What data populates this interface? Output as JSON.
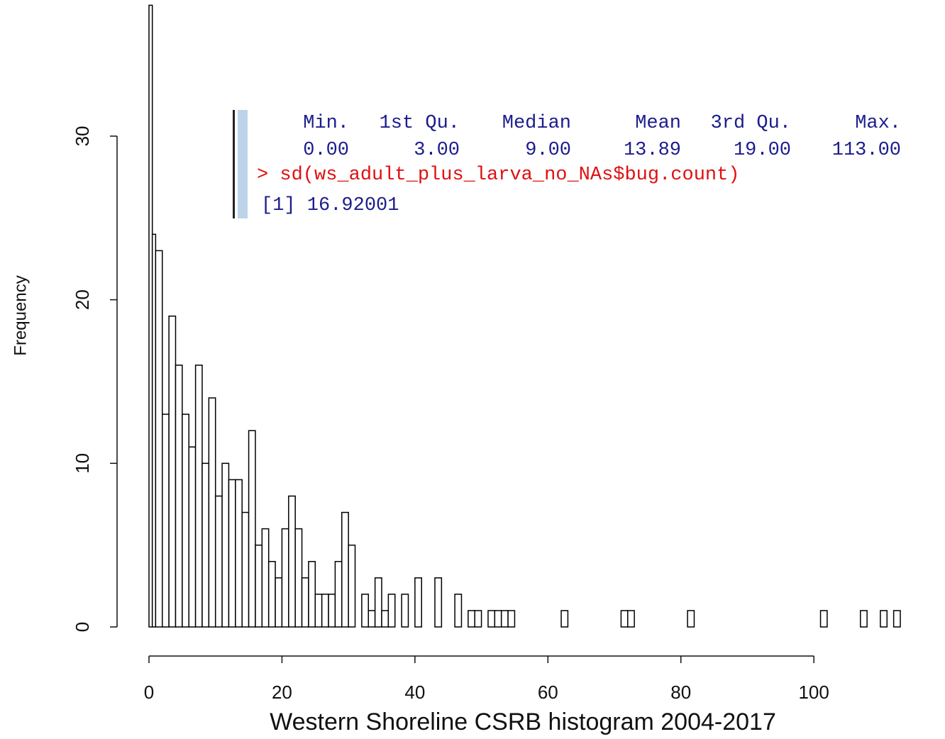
{
  "chart_data": {
    "type": "histogram",
    "xlabel": "Western Shoreline CSRB histogram 2004-2017",
    "ylabel": "Frequency",
    "bins": [
      0,
      0.5,
      1,
      2,
      3,
      4,
      5,
      6,
      7,
      8,
      9,
      10,
      11,
      12,
      13,
      14,
      15,
      16,
      17,
      18,
      19,
      20,
      21,
      22,
      23,
      24,
      25,
      26,
      27,
      28,
      29,
      30,
      31,
      32,
      33,
      34,
      35,
      36,
      37,
      38,
      39,
      40,
      41,
      42,
      43,
      44,
      45,
      46,
      47,
      48,
      49,
      50,
      51,
      52,
      53,
      54,
      55,
      56,
      57,
      58,
      59,
      60,
      61,
      62,
      63,
      64,
      65,
      66,
      67,
      68,
      69,
      70,
      71,
      72,
      73,
      74,
      75,
      76,
      77,
      78,
      79,
      80,
      81,
      82,
      83,
      84,
      85,
      86,
      87,
      88,
      89,
      90,
      91,
      92,
      93,
      94,
      95,
      96,
      97,
      98,
      99,
      100,
      101,
      102,
      103,
      104,
      105,
      106,
      107,
      108,
      109,
      110,
      111,
      112,
      113
    ],
    "values": [
      38,
      24,
      23,
      13,
      19,
      16,
      13,
      11,
      16,
      10,
      14,
      8,
      10,
      9,
      9,
      7,
      12,
      5,
      6,
      4,
      3,
      6,
      8,
      6,
      3,
      4,
      2,
      2,
      2,
      4,
      7,
      5,
      0,
      2,
      1,
      3,
      1,
      2,
      0,
      2,
      0,
      3,
      0,
      0,
      3,
      0,
      0,
      2,
      0,
      1,
      1,
      0,
      1,
      1,
      1,
      1,
      0,
      0,
      0,
      0,
      0,
      0,
      0,
      1,
      0,
      0,
      0,
      0,
      0,
      0,
      0,
      0,
      1,
      1,
      0,
      0,
      0,
      0,
      0,
      0,
      0,
      0,
      1,
      0,
      0,
      0,
      0,
      0,
      0,
      0,
      0,
      0,
      0,
      0,
      0,
      0,
      0,
      0,
      0,
      0,
      0,
      0,
      1,
      0,
      0,
      0,
      0,
      0,
      1,
      0,
      0,
      1,
      0,
      1
    ],
    "color": "#ffffff",
    "edgecolor": "#000000",
    "xlim": [
      0,
      113
    ],
    "xticks": [
      0,
      20,
      40,
      60,
      80,
      100
    ],
    "ylim": [
      0,
      38
    ],
    "yticks": [
      0,
      10,
      20,
      30
    ]
  },
  "console": {
    "summary_header": [
      "Min.",
      "1st Qu.",
      "Median",
      "Mean",
      "3rd Qu.",
      "Max."
    ],
    "summary_values": [
      "0.00",
      "3.00",
      "9.00",
      "13.89",
      "19.00",
      "113.00"
    ],
    "command": "> sd(ws_adult_plus_larva_no_NAs$bug.count)",
    "output": "[1] 16.92001"
  }
}
